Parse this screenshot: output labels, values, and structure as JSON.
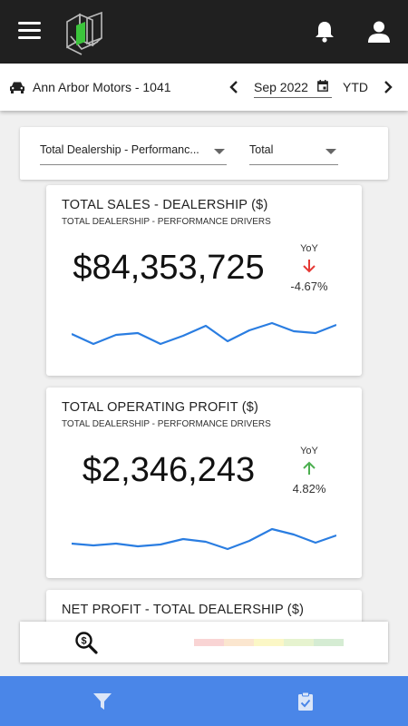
{
  "header": {
    "menu_icon": "hamburger-menu-icon",
    "logo_icon": "app-logo",
    "notifications_icon": "bell-icon",
    "profile_icon": "user-icon"
  },
  "dealer_bar": {
    "dealer_name": "Ann Arbor Motors - 1041",
    "date_value": "Sep 2022",
    "period": "YTD",
    "accent": "#202020"
  },
  "filters": {
    "scope_value": "Total Dealership - Performanc...",
    "type_value": "Total"
  },
  "cards": [
    {
      "title": "TOTAL SALES - DEALERSHIP ($)",
      "subtitle": "TOTAL DEALERSHIP - PERFORMANCE DRIVERS",
      "value": "$84,353,725",
      "yoy_label": "YoY",
      "yoy_change": "-4.67%",
      "yoy_direction": "down",
      "trend_color": "#2a7de1"
    },
    {
      "title": "TOTAL OPERATING PROFIT ($)",
      "subtitle": "TOTAL DEALERSHIP - PERFORMANCE DRIVERS",
      "value": "$2,346,243",
      "yoy_label": "YoY",
      "yoy_change": "4.82%",
      "yoy_direction": "up",
      "trend_color": "#2a7de1"
    },
    {
      "title": "NET PROFIT - TOTAL DEALERSHIP ($)"
    }
  ],
  "bottom_strip": {
    "icon": "search-dollar-icon",
    "legend_colors": [
      "#f9d4d4",
      "#fbe6cf",
      "#fbf7c6",
      "#e6f3cf",
      "#d5ecd3"
    ]
  },
  "footer": {
    "background": "#4a86e8",
    "left_icon": "filter-icon",
    "right_icon": "clipboard-check-icon"
  },
  "colors": {
    "down": "#e53935",
    "up": "#4caf50"
  }
}
